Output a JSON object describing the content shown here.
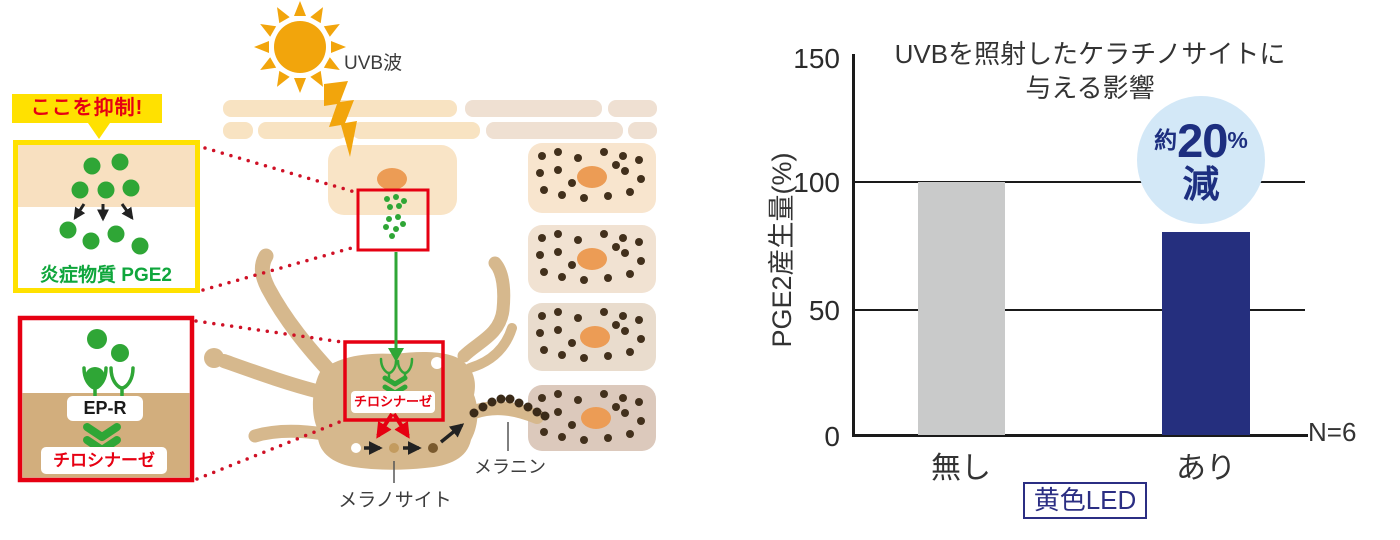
{
  "diagram": {
    "suppress_banner": "ここを抑制!",
    "inflammation_label": "炎症物質 PGE2",
    "receptor_label": "EP-R",
    "tyrosinase_label": "チロシナーゼ",
    "tyrosinase_label_melanocyte": "チロシナーゼ",
    "uvb_label": "UVB波",
    "melanocyte_label": "メラノサイト",
    "melanin_label": "メラニン",
    "colors": {
      "red": "#E60012",
      "yellow": "#FFE100",
      "green": "#2FA636",
      "green_text": "#0FA63C",
      "melanocyte_tan": "#D6B88D",
      "sun_orange": "#F2A50C"
    }
  },
  "chart_data": {
    "type": "bar",
    "title": "UVBを照射したケラチノサイトに与える影響",
    "title_lines": [
      "UVBを照射したケラチノサイトに",
      "与える影響"
    ],
    "ylabel": "PGE2産生量(%)",
    "categories": [
      "無し",
      "あり"
    ],
    "values": [
      100,
      80
    ],
    "ylim": [
      0,
      150
    ],
    "yticks": [
      0,
      50,
      100,
      150
    ],
    "ytick_labels": [
      "0",
      "50",
      "100",
      "150"
    ],
    "gridlines_at": [
      50,
      100
    ],
    "legend": "none",
    "bar_colors": [
      "#C9CACA",
      "#252F7E"
    ],
    "annotation": {
      "prefix": "約",
      "value": "20",
      "percent": "%",
      "suffix": "減"
    },
    "n_label": "N=6",
    "group_label": "黄色LED",
    "badge_color": "#D3E8F7",
    "badge_text_color": "#1D2F80"
  }
}
